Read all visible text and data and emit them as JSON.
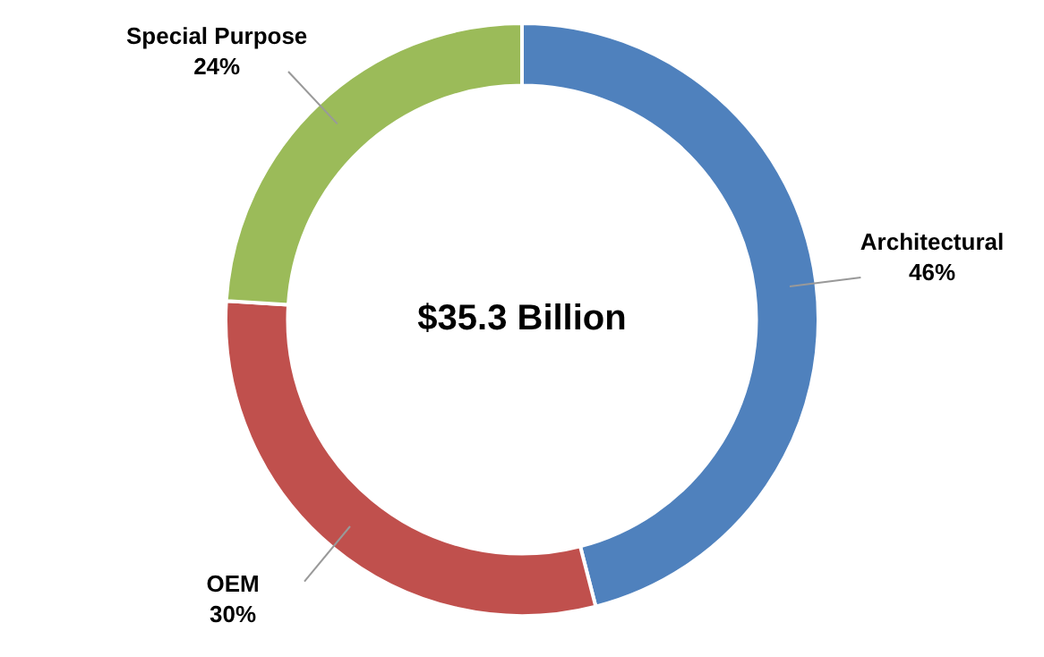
{
  "chart_data": {
    "type": "donut",
    "categories": [
      "Architectural",
      "OEM",
      "Special Purpose"
    ],
    "values": [
      46,
      30,
      24
    ],
    "value_labels": [
      "46%",
      "30%",
      "24%"
    ],
    "colors": [
      "#4f81bd",
      "#c0504d",
      "#9bbb59"
    ],
    "annotations": [
      "$35.3 Billion"
    ],
    "legend": false
  }
}
